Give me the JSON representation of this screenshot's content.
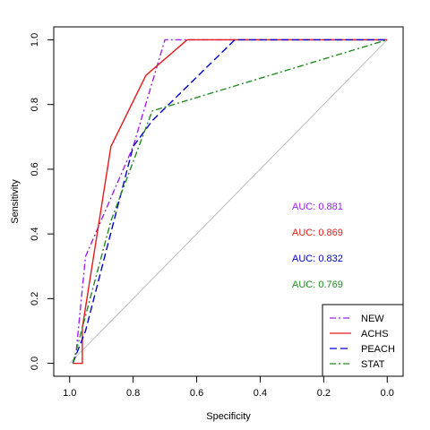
{
  "chart_data": {
    "type": "line",
    "xlabel": "Specificity",
    "ylabel": "Sensitivity",
    "xlim": [
      1.05,
      -0.05
    ],
    "ylim": [
      -0.04,
      1.04
    ],
    "x_ticks": [
      1.0,
      0.8,
      0.6,
      0.4,
      0.2,
      0.0
    ],
    "x_tick_labels": [
      "1.0",
      "0.8",
      "0.6",
      "0.4",
      "0.2",
      "0.0"
    ],
    "y_ticks": [
      0.0,
      0.2,
      0.4,
      0.6,
      0.8,
      1.0
    ],
    "y_tick_labels": [
      "0.0",
      "0.2",
      "0.4",
      "0.6",
      "0.8",
      "1.0"
    ],
    "grid": false,
    "legend_position": "bottom-right",
    "diagonal_reference": {
      "x": [
        1.0,
        0.0
      ],
      "y": [
        0.0,
        1.0
      ],
      "color": "#bdbdbd"
    },
    "series": [
      {
        "name": "NEW",
        "color": "#a020f0",
        "dash": "7 3 2 3",
        "auc_label": "AUC: 0.881",
        "x": [
          0.99,
          0.98,
          0.95,
          0.8,
          0.7,
          0.0
        ],
        "y": [
          0.0,
          0.03,
          0.33,
          0.67,
          1.0,
          1.0
        ]
      },
      {
        "name": "ACHS",
        "color": "#e41a1c",
        "dash": "",
        "auc_label": "AUC: 0.869",
        "x": [
          0.99,
          0.96,
          0.96,
          0.87,
          0.76,
          0.63,
          0.0
        ],
        "y": [
          0.0,
          0.0,
          0.11,
          0.67,
          0.89,
          1.0,
          1.0
        ]
      },
      {
        "name": "PEACH",
        "color": "#0000cd",
        "dash": "8 4",
        "auc_label": "AUC: 0.832",
        "x": [
          0.99,
          0.95,
          0.8,
          0.74,
          0.48,
          0.0
        ],
        "y": [
          0.0,
          0.1,
          0.67,
          0.75,
          1.0,
          1.0
        ]
      },
      {
        "name": "STAT",
        "color": "#228b22",
        "dash": "7 3 2 3",
        "auc_label": "AUC: 0.769",
        "x": [
          0.99,
          0.87,
          0.74,
          0.0
        ],
        "y": [
          0.0,
          0.44,
          0.78,
          1.0
        ]
      }
    ]
  }
}
